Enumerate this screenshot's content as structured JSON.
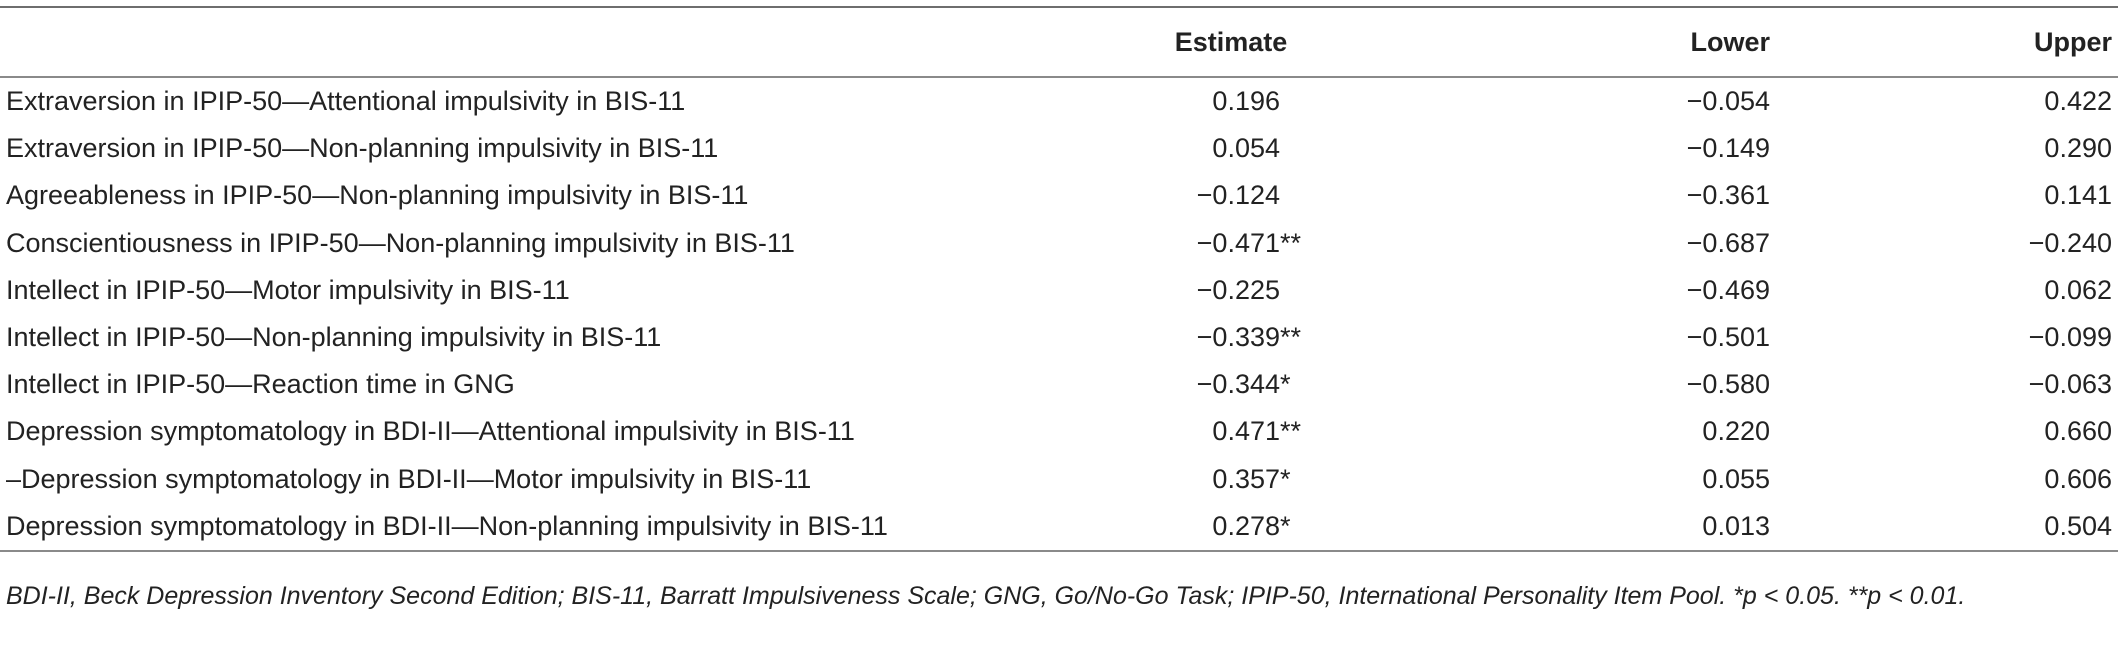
{
  "table": {
    "headers": [
      "",
      "Estimate",
      "Lower",
      "Upper"
    ],
    "rows": [
      {
        "label": "Extraversion in IPIP-50—Attentional impulsivity in BIS-11",
        "estimate": "0.196",
        "sig": "",
        "lower": "−0.054",
        "upper": "0.422"
      },
      {
        "label": "Extraversion in IPIP-50—Non-planning impulsivity in BIS-11",
        "estimate": "0.054",
        "sig": "",
        "lower": "−0.149",
        "upper": "0.290"
      },
      {
        "label": "Agreeableness in IPIP-50—Non-planning impulsivity in BIS-11",
        "estimate": "−0.124",
        "sig": "",
        "lower": "−0.361",
        "upper": "0.141"
      },
      {
        "label": "Conscientiousness in IPIP-50—Non-planning impulsivity in BIS-11",
        "estimate": "−0.471",
        "sig": "**",
        "lower": "−0.687",
        "upper": "−0.240"
      },
      {
        "label": "Intellect in IPIP-50—Motor impulsivity in BIS-11",
        "estimate": "−0.225",
        "sig": "",
        "lower": "−0.469",
        "upper": "0.062"
      },
      {
        "label": "Intellect in IPIP-50—Non-planning impulsivity in BIS-11",
        "estimate": "−0.339",
        "sig": "**",
        "lower": "−0.501",
        "upper": "−0.099"
      },
      {
        "label": "Intellect in IPIP-50—Reaction time in GNG",
        "estimate": "−0.344",
        "sig": "*",
        "lower": "−0.580",
        "upper": "−0.063"
      },
      {
        "label": "Depression symptomatology in BDI-II—Attentional impulsivity in BIS-11",
        "estimate": "0.471",
        "sig": "**",
        "lower": "0.220",
        "upper": "0.660"
      },
      {
        "label": "–Depression symptomatology in BDI-II—Motor impulsivity in BIS-11",
        "estimate": "0.357",
        "sig": "*",
        "lower": "0.055",
        "upper": "0.606"
      },
      {
        "label": "Depression symptomatology in BDI-II—Non-planning impulsivity in BIS-11",
        "estimate": "0.278",
        "sig": "*",
        "lower": "0.013",
        "upper": "0.504"
      }
    ]
  },
  "footnote": "BDI-II, Beck Depression Inventory Second Edition; BIS-11, Barratt Impulsiveness Scale; GNG, Go/No-Go Task; IPIP-50, International Personality Item Pool. *p < 0.05. **p < 0.01."
}
